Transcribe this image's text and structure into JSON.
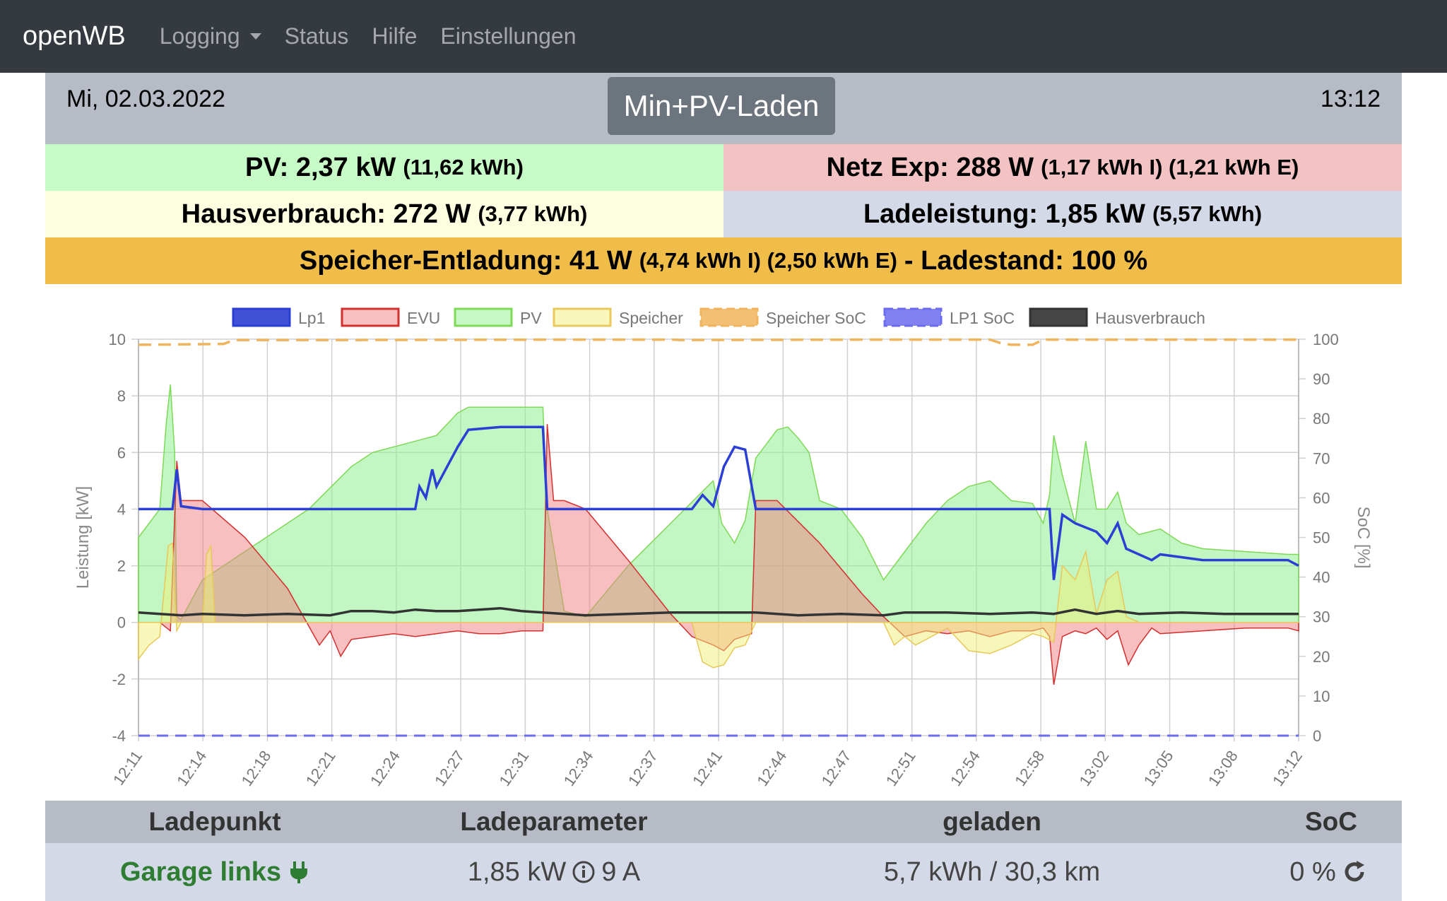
{
  "nav": {
    "brand": "openWB",
    "items": [
      "Logging",
      "Status",
      "Hilfe",
      "Einstellungen"
    ]
  },
  "header": {
    "date": "Mi, 02.03.2022",
    "mode": "Min+PV-Laden",
    "time": "13:12"
  },
  "stats": {
    "pv_label": "PV: 2,37 kW",
    "pv_sub": "(11,62 kWh)",
    "netz_label": "Netz Exp: 288 W",
    "netz_sub": "(1,17 kWh I) (1,21 kWh E)",
    "haus_label": "Hausverbrauch: 272 W",
    "haus_sub": "(3,77 kWh)",
    "lade_label": "Ladeleistung: 1,85 kW",
    "lade_sub": "(5,57 kWh)",
    "speicher_label": "Speicher-Entladung: 41 W",
    "speicher_sub": "(4,74 kWh I) (2,50 kWh E)",
    "speicher_tail": "- Ladestand: 100 %"
  },
  "table": {
    "headers": [
      "Ladepunkt",
      "Ladeparameter",
      "geladen",
      "SoC"
    ],
    "row": {
      "name": "Garage links",
      "power": "1,85 kW",
      "current": "9 A",
      "charged": "5,7 kWh / 30,3 km",
      "soc": "0 %"
    }
  },
  "colors": {
    "nav_bg": "#343a40",
    "lp1": "#2c3fd4",
    "evu": "#d32f2f",
    "pv": "#7ed957",
    "speicher": "#e8c85a",
    "speicher_soc": "#f0b45c",
    "lp1_soc": "#6b6bf0",
    "haus": "#333333"
  },
  "chart_data": {
    "type": "area",
    "ylabel": "Leistung [kW]",
    "y2label": "SoC [%]",
    "ylim": [
      -4,
      10
    ],
    "y2lim": [
      0,
      100
    ],
    "yticks": [
      -4,
      -2,
      0,
      2,
      4,
      6,
      8,
      10
    ],
    "y2ticks": [
      0,
      10,
      20,
      30,
      40,
      50,
      60,
      70,
      80,
      90,
      100
    ],
    "xticks": [
      "12:11",
      "12:14",
      "12:18",
      "12:21",
      "12:24",
      "12:27",
      "12:31",
      "12:34",
      "12:37",
      "12:41",
      "12:44",
      "12:47",
      "12:51",
      "12:54",
      "12:58",
      "13:02",
      "13:05",
      "13:08",
      "13:12"
    ],
    "legend_position": "top",
    "grid": true,
    "series": [
      {
        "name": "Lp1",
        "axis": "y",
        "points": [
          [
            0,
            4.0
          ],
          [
            1,
            4.0
          ],
          [
            1.6,
            4.0
          ],
          [
            1.8,
            5.4
          ],
          [
            2,
            4.1
          ],
          [
            3,
            4.0
          ],
          [
            8,
            4.0
          ],
          [
            12,
            4.0
          ],
          [
            13,
            4.0
          ],
          [
            13.2,
            4.8
          ],
          [
            13.5,
            4.4
          ],
          [
            13.8,
            5.4
          ],
          [
            14,
            4.8
          ],
          [
            15,
            6.2
          ],
          [
            15.5,
            6.8
          ],
          [
            17,
            6.9
          ],
          [
            19,
            6.9
          ],
          [
            19.2,
            4.0
          ],
          [
            23,
            4.0
          ],
          [
            26,
            4.0
          ],
          [
            26.5,
            4.5
          ],
          [
            27,
            4.1
          ],
          [
            27.5,
            5.5
          ],
          [
            28,
            6.2
          ],
          [
            28.5,
            6.1
          ],
          [
            29,
            4.0
          ],
          [
            33,
            4.0
          ],
          [
            36,
            4.0
          ],
          [
            41,
            4.0
          ],
          [
            42,
            4.0
          ],
          [
            42.8,
            4.0
          ],
          [
            43,
            1.5
          ],
          [
            43.4,
            3.8
          ],
          [
            44,
            3.5
          ],
          [
            45,
            3.2
          ],
          [
            45.5,
            2.8
          ],
          [
            46,
            3.5
          ],
          [
            46.4,
            2.6
          ],
          [
            47,
            2.4
          ],
          [
            47.6,
            2.2
          ],
          [
            48,
            2.4
          ],
          [
            50,
            2.2
          ],
          [
            54,
            2.2
          ],
          [
            54.5,
            2.0
          ]
        ]
      },
      {
        "name": "EVU",
        "axis": "y",
        "points": [
          [
            0,
            0
          ],
          [
            1,
            0
          ],
          [
            1.5,
            -0.3
          ],
          [
            1.8,
            5.7
          ],
          [
            2,
            4.3
          ],
          [
            3,
            4.3
          ],
          [
            5,
            3.0
          ],
          [
            7,
            1.2
          ],
          [
            8.5,
            -0.8
          ],
          [
            9,
            -0.3
          ],
          [
            9.5,
            -1.2
          ],
          [
            10,
            -0.6
          ],
          [
            11,
            -0.5
          ],
          [
            12,
            -0.4
          ],
          [
            13,
            -0.5
          ],
          [
            14,
            -0.4
          ],
          [
            15,
            -0.3
          ],
          [
            16,
            -0.4
          ],
          [
            17,
            -0.4
          ],
          [
            18,
            -0.3
          ],
          [
            19,
            -0.3
          ],
          [
            19.2,
            7.0
          ],
          [
            19.5,
            4.3
          ],
          [
            20,
            4.3
          ],
          [
            21,
            4.0
          ],
          [
            23,
            2.2
          ],
          [
            25,
            0.3
          ],
          [
            26,
            -0.5
          ],
          [
            27,
            -0.8
          ],
          [
            27.5,
            -1.0
          ],
          [
            28,
            -0.6
          ],
          [
            28.8,
            -0.4
          ],
          [
            29,
            4.3
          ],
          [
            30,
            4.3
          ],
          [
            32,
            2.8
          ],
          [
            34,
            1.0
          ],
          [
            35,
            0.2
          ],
          [
            36,
            -0.5
          ],
          [
            37,
            -0.3
          ],
          [
            38,
            -0.4
          ],
          [
            39,
            -0.3
          ],
          [
            40,
            -0.5
          ],
          [
            41,
            -0.3
          ],
          [
            42,
            -0.3
          ],
          [
            42.5,
            -0.2
          ],
          [
            42.8,
            -0.5
          ],
          [
            43,
            -2.2
          ],
          [
            43.4,
            -0.5
          ],
          [
            44,
            -0.3
          ],
          [
            44.5,
            -0.4
          ],
          [
            45,
            -0.2
          ],
          [
            45.5,
            -0.6
          ],
          [
            46,
            -0.3
          ],
          [
            46.5,
            -1.5
          ],
          [
            47,
            -0.8
          ],
          [
            47.6,
            -0.2
          ],
          [
            48,
            -0.4
          ],
          [
            50,
            -0.3
          ],
          [
            52,
            -0.2
          ],
          [
            54,
            -0.2
          ],
          [
            54.5,
            -0.3
          ]
        ]
      },
      {
        "name": "PV",
        "axis": "y",
        "points": [
          [
            0,
            3.0
          ],
          [
            0.5,
            3.5
          ],
          [
            1,
            4.0
          ],
          [
            1.3,
            7.0
          ],
          [
            1.5,
            8.4
          ],
          [
            1.7,
            6.0
          ],
          [
            1.8,
            0.2
          ],
          [
            2,
            0.1
          ],
          [
            3,
            1.5
          ],
          [
            5,
            2.5
          ],
          [
            8,
            4.0
          ],
          [
            10,
            5.5
          ],
          [
            11,
            6.0
          ],
          [
            12,
            6.2
          ],
          [
            13,
            6.4
          ],
          [
            14,
            6.6
          ],
          [
            15,
            7.4
          ],
          [
            15.5,
            7.6
          ],
          [
            17,
            7.6
          ],
          [
            19,
            7.6
          ],
          [
            19.2,
            4.0
          ],
          [
            20,
            0.4
          ],
          [
            21,
            0.2
          ],
          [
            23,
            2.0
          ],
          [
            25,
            3.5
          ],
          [
            27,
            5.0
          ],
          [
            27.4,
            3.5
          ],
          [
            28,
            2.8
          ],
          [
            28.5,
            3.6
          ],
          [
            29,
            5.8
          ],
          [
            30,
            6.8
          ],
          [
            30.5,
            6.9
          ],
          [
            31,
            6.5
          ],
          [
            31.5,
            6.0
          ],
          [
            32,
            4.3
          ],
          [
            33,
            4.0
          ],
          [
            34,
            3.0
          ],
          [
            35,
            1.5
          ],
          [
            36,
            2.5
          ],
          [
            37,
            3.5
          ],
          [
            38,
            4.3
          ],
          [
            39,
            4.8
          ],
          [
            40,
            5.0
          ],
          [
            41,
            4.3
          ],
          [
            42,
            4.2
          ],
          [
            42.5,
            3.5
          ],
          [
            42.8,
            4.5
          ],
          [
            43,
            6.6
          ],
          [
            43.4,
            5.2
          ],
          [
            44,
            3.5
          ],
          [
            44.5,
            6.4
          ],
          [
            45,
            4.0
          ],
          [
            45.5,
            4.0
          ],
          [
            46,
            4.6
          ],
          [
            46.4,
            3.5
          ],
          [
            47,
            3.1
          ],
          [
            48,
            3.3
          ],
          [
            49,
            2.8
          ],
          [
            50,
            2.6
          ],
          [
            52,
            2.5
          ],
          [
            54,
            2.4
          ],
          [
            54.5,
            2.4
          ]
        ]
      },
      {
        "name": "Speicher",
        "axis": "y",
        "points": [
          [
            0,
            -1.3
          ],
          [
            0.5,
            -0.8
          ],
          [
            1,
            -0.5
          ],
          [
            1.4,
            2.7
          ],
          [
            1.6,
            2.8
          ],
          [
            1.8,
            -0.3
          ],
          [
            2,
            0
          ],
          [
            3,
            0
          ],
          [
            3.2,
            2.4
          ],
          [
            3.4,
            2.7
          ],
          [
            3.6,
            0
          ],
          [
            4,
            0
          ],
          [
            5,
            0
          ],
          [
            7,
            0
          ],
          [
            8,
            0
          ],
          [
            9,
            0
          ],
          [
            10,
            0
          ],
          [
            12,
            0
          ],
          [
            14,
            0
          ],
          [
            16,
            0
          ],
          [
            18,
            0
          ],
          [
            19,
            0
          ],
          [
            20,
            0
          ],
          [
            22,
            0
          ],
          [
            24,
            0
          ],
          [
            26,
            0
          ],
          [
            26.5,
            -1.4
          ],
          [
            27,
            -1.6
          ],
          [
            27.5,
            -1.5
          ],
          [
            28,
            -0.9
          ],
          [
            28.5,
            -0.8
          ],
          [
            29,
            0
          ],
          [
            30,
            0
          ],
          [
            32,
            0
          ],
          [
            34,
            0
          ],
          [
            35,
            0
          ],
          [
            35.5,
            -0.8
          ],
          [
            36,
            -0.5
          ],
          [
            36.5,
            -0.8
          ],
          [
            37,
            -0.6
          ],
          [
            38,
            -0.2
          ],
          [
            39,
            -1.0
          ],
          [
            40,
            -1.1
          ],
          [
            41,
            -0.8
          ],
          [
            42,
            -0.4
          ],
          [
            42.5,
            -0.5
          ],
          [
            43,
            -0.7
          ],
          [
            43.4,
            2.0
          ],
          [
            44,
            1.5
          ],
          [
            44.5,
            2.5
          ],
          [
            45,
            0.3
          ],
          [
            45.5,
            1.5
          ],
          [
            46,
            1.8
          ],
          [
            46.4,
            0.2
          ],
          [
            47,
            0
          ],
          [
            50,
            0
          ],
          [
            54,
            0
          ],
          [
            54.5,
            0
          ]
        ]
      },
      {
        "name": "Speicher SoC",
        "axis": "y2",
        "dashed": true,
        "points": [
          [
            0,
            98.6
          ],
          [
            4,
            98.8
          ],
          [
            4.5,
            99.8
          ],
          [
            10,
            99.8
          ],
          [
            20,
            99.9
          ],
          [
            25,
            99.9
          ],
          [
            25.5,
            99.8
          ],
          [
            35,
            99.9
          ],
          [
            40,
            99.9
          ],
          [
            40.5,
            99.0
          ],
          [
            41,
            98.6
          ],
          [
            42,
            98.6
          ],
          [
            42.5,
            99.9
          ],
          [
            50,
            99.9
          ],
          [
            54.5,
            99.9
          ]
        ]
      },
      {
        "name": "LP1 SoC",
        "axis": "y2",
        "dashed": true,
        "points": [
          [
            0,
            0
          ],
          [
            54.5,
            0
          ]
        ]
      },
      {
        "name": "Hausverbrauch",
        "axis": "y",
        "points": [
          [
            0,
            0.35
          ],
          [
            1,
            0.3
          ],
          [
            2,
            0.25
          ],
          [
            3,
            0.3
          ],
          [
            5,
            0.25
          ],
          [
            7,
            0.3
          ],
          [
            9,
            0.25
          ],
          [
            10,
            0.4
          ],
          [
            11,
            0.4
          ],
          [
            12,
            0.35
          ],
          [
            13,
            0.45
          ],
          [
            14,
            0.4
          ],
          [
            15,
            0.4
          ],
          [
            16,
            0.45
          ],
          [
            17,
            0.5
          ],
          [
            18,
            0.4
          ],
          [
            19,
            0.35
          ],
          [
            20,
            0.3
          ],
          [
            21,
            0.25
          ],
          [
            23,
            0.3
          ],
          [
            25,
            0.35
          ],
          [
            27,
            0.35
          ],
          [
            29,
            0.35
          ],
          [
            31,
            0.25
          ],
          [
            33,
            0.3
          ],
          [
            35,
            0.25
          ],
          [
            36,
            0.35
          ],
          [
            38,
            0.35
          ],
          [
            40,
            0.3
          ],
          [
            42,
            0.35
          ],
          [
            43,
            0.3
          ],
          [
            44,
            0.45
          ],
          [
            45,
            0.3
          ],
          [
            46,
            0.4
          ],
          [
            47,
            0.3
          ],
          [
            49,
            0.35
          ],
          [
            51,
            0.3
          ],
          [
            54.5,
            0.3
          ]
        ]
      }
    ]
  }
}
